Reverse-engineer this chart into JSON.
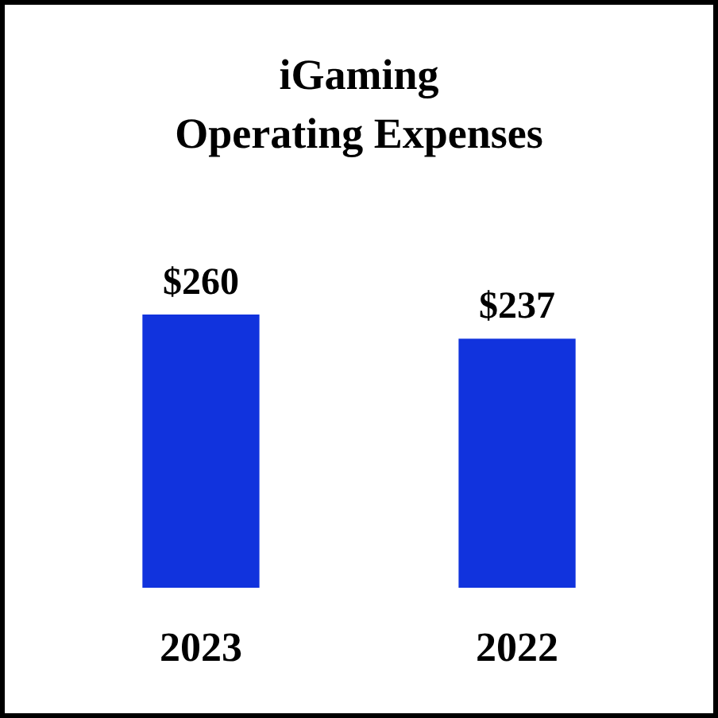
{
  "chart_data": {
    "type": "bar",
    "title": "iGaming\nOperating Expenses",
    "categories": [
      "2023",
      "2022"
    ],
    "values": [
      260,
      237
    ],
    "value_labels": [
      "$260",
      "$237"
    ],
    "color": "#1133dd"
  }
}
